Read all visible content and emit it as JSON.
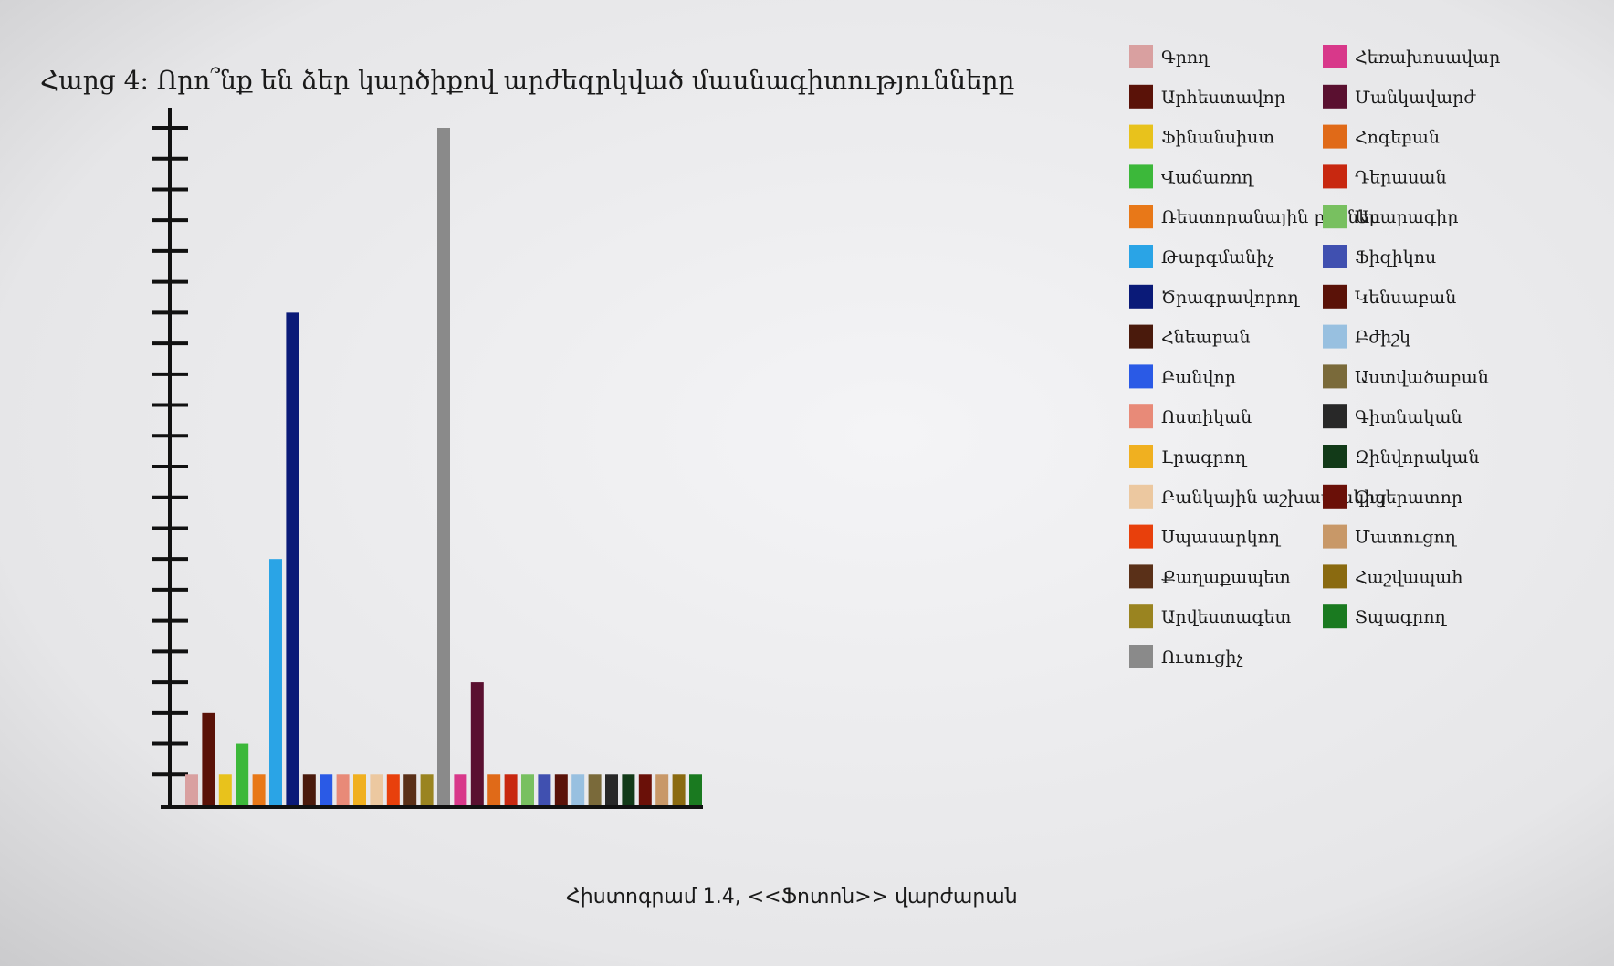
{
  "chart_data": {
    "type": "bar",
    "title": "Հարց 4: Որո՞նք են ձեր կարծիքով արժեզրկված մասնագիտությունները",
    "caption": "Հիստոգրամ 1.4, <<Ֆոտոն>> վարժարան",
    "categories": [
      "Գրող",
      "Արհեստավոր",
      "Ֆինանսիստ",
      "Վաճառող",
      "Ռեստորանային բիզնես",
      "Թարգմանիչ",
      "Ծրագրավորող",
      "Հնեաբան",
      "Բանվոր",
      "Ոստիկան",
      "Լրագրող",
      "Բանկային աշխատակից",
      "Սպասարկող",
      "Քաղաքապետ",
      "Արվեստագետ",
      "Ուսուցիչ",
      "Հեռախոսավար",
      "Մանկավարժ",
      "Հոգեբան",
      "Դերասան",
      "Արարագիր",
      "Ֆիզիկոս",
      "Կենսաբան",
      "Բժիշկ",
      "Աստվածաբան",
      "Գիտնական",
      "Զինվորական",
      "Օպերատոր",
      "Մատուցող",
      "Հաշվապահ",
      "Տպագրող"
    ],
    "values": [
      1,
      3,
      1,
      2,
      1,
      8,
      16,
      1,
      1,
      1,
      1,
      1,
      1,
      1,
      1,
      22,
      1,
      4,
      1,
      1,
      1,
      1,
      1,
      1,
      1,
      1,
      1,
      1,
      1,
      1,
      1
    ],
    "colors": [
      "#d9a0a0",
      "#5a1208",
      "#e8c21c",
      "#3cb83a",
      "#e87818",
      "#2aa4e6",
      "#0a1a78",
      "#4a1a0c",
      "#2a5ae6",
      "#e88a78",
      "#f0b020",
      "#ecc8a0",
      "#e8400c",
      "#5a3018",
      "#9a8420",
      "#8a8a8a",
      "#d8388a",
      "#5a1030",
      "#e06a18",
      "#c82810",
      "#78c060",
      "#4050b0",
      "#5a1208",
      "#98c0e0",
      "#7a6a3a",
      "#282828",
      "#123a18",
      "#6a1008",
      "#c89868",
      "#8a6a10",
      "#1a7a20"
    ],
    "ylim": [
      0,
      22
    ],
    "yticks": [
      1,
      2,
      3,
      4,
      5,
      6,
      7,
      8,
      9,
      10,
      11,
      12,
      13,
      14,
      15,
      16,
      17,
      18,
      19,
      20,
      21,
      22
    ]
  }
}
